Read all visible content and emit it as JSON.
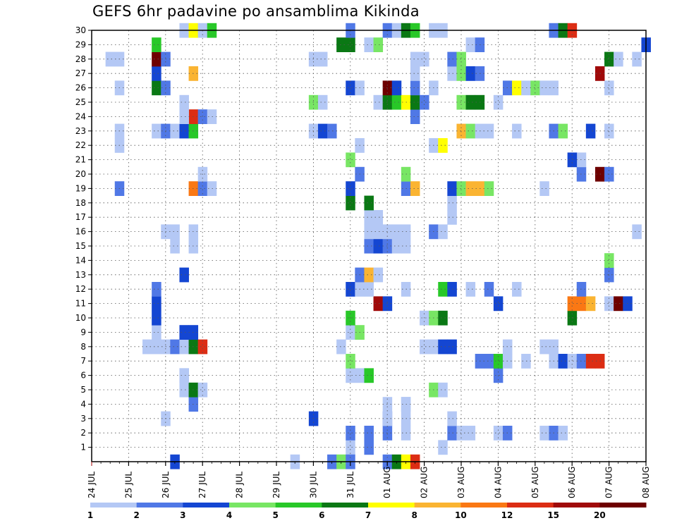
{
  "chart_data": {
    "type": "heatmap",
    "title": "GEFS 6hr padavine po ansamblima Kikinda",
    "y_ticks": [
      "1",
      "2",
      "3",
      "4",
      "5",
      "6",
      "7",
      "8",
      "9",
      "10",
      "11",
      "12",
      "13",
      "14",
      "15",
      "16",
      "17",
      "18",
      "19",
      "20",
      "21",
      "22",
      "23",
      "24",
      "25",
      "26",
      "27",
      "28",
      "29",
      "30"
    ],
    "x_ticks": [
      "24 JUL",
      "25 JUL",
      "26 JUL",
      "27 JUL",
      "28 JUL",
      "29 JUL",
      "30 JUL",
      "31 JUL",
      "01 AUG",
      "02 AUG",
      "03 AUG",
      "04 AUG",
      "05 AUG",
      "06 AUG",
      "07 AUG",
      "08 AUG"
    ],
    "steps_per_day": 4,
    "x_range_steps": [
      0,
      60
    ],
    "y_range_members": [
      0,
      30
    ],
    "grid": "dotted",
    "colorbar": {
      "labels": [
        "1",
        "2",
        "3",
        "4",
        "5",
        "6",
        "7",
        "8",
        "10",
        "12",
        "15",
        "20"
      ],
      "colors": [
        "#b4c8f5",
        "#5078e6",
        "#1446d2",
        "#78e664",
        "#28c828",
        "#0a7814",
        "#ffff00",
        "#fab432",
        "#fa7814",
        "#dc2d14",
        "#a00a0a",
        "#6e0000"
      ]
    },
    "cells": [
      [
        28,
        1,
        0
      ],
      [
        28,
        2,
        1
      ],
      [
        30,
        1,
        1
      ],
      [
        30,
        2,
        1
      ],
      [
        32,
        2,
        1
      ],
      [
        32,
        3,
        1
      ],
      [
        34,
        2,
        0
      ],
      [
        34,
        3,
        0
      ],
      [
        34,
        4,
        0
      ],
      [
        38,
        1,
        0
      ],
      [
        39,
        2,
        1
      ],
      [
        39,
        3,
        0
      ],
      [
        40,
        2,
        0
      ],
      [
        41,
        2,
        0
      ],
      [
        44,
        2,
        0
      ],
      [
        45,
        2,
        1
      ],
      [
        49,
        2,
        0
      ],
      [
        50,
        2,
        1
      ],
      [
        51,
        2,
        0
      ],
      [
        24,
        3,
        2
      ],
      [
        8,
        3,
        0
      ],
      [
        32,
        3,
        0
      ],
      [
        32,
        4,
        0
      ],
      [
        11,
        4,
        1
      ],
      [
        34,
        4,
        0
      ],
      [
        10,
        5,
        0
      ],
      [
        10,
        6,
        0
      ],
      [
        11,
        5,
        5
      ],
      [
        12,
        5,
        0
      ],
      [
        37,
        5,
        3
      ],
      [
        38,
        5,
        0
      ],
      [
        10,
        6,
        0
      ],
      [
        28,
        6,
        0
      ],
      [
        29,
        6,
        0
      ],
      [
        30,
        6,
        4
      ],
      [
        44,
        6,
        1
      ],
      [
        28,
        7,
        3
      ],
      [
        42,
        7,
        1
      ],
      [
        43,
        7,
        1
      ],
      [
        44,
        7,
        4
      ],
      [
        45,
        7,
        0
      ],
      [
        47,
        7,
        0
      ],
      [
        50,
        7,
        0
      ],
      [
        51,
        7,
        2
      ],
      [
        52,
        7,
        0
      ],
      [
        53,
        7,
        1
      ],
      [
        54,
        7,
        9
      ],
      [
        55,
        7,
        9
      ],
      [
        6,
        8,
        0
      ],
      [
        7,
        8,
        0
      ],
      [
        8,
        8,
        0
      ],
      [
        9,
        8,
        1
      ],
      [
        10,
        8,
        0
      ],
      [
        11,
        8,
        5
      ],
      [
        12,
        8,
        9
      ],
      [
        27,
        8,
        0
      ],
      [
        36,
        8,
        0
      ],
      [
        37,
        8,
        0
      ],
      [
        38,
        8,
        2
      ],
      [
        39,
        8,
        2
      ],
      [
        45,
        8,
        0
      ],
      [
        49,
        8,
        0
      ],
      [
        50,
        8,
        0
      ],
      [
        7,
        9,
        0
      ],
      [
        10,
        9,
        2
      ],
      [
        11,
        9,
        2
      ],
      [
        28,
        9,
        0
      ],
      [
        29,
        9,
        3
      ],
      [
        7,
        10,
        2
      ],
      [
        28,
        10,
        4
      ],
      [
        36,
        10,
        0
      ],
      [
        37,
        10,
        3
      ],
      [
        38,
        10,
        5
      ],
      [
        52,
        10,
        5
      ],
      [
        7,
        11,
        2
      ],
      [
        31,
        11,
        10
      ],
      [
        32,
        11,
        2
      ],
      [
        44,
        11,
        2
      ],
      [
        52,
        11,
        8
      ],
      [
        53,
        11,
        8
      ],
      [
        54,
        11,
        7
      ],
      [
        56,
        11,
        0
      ],
      [
        57,
        11,
        11
      ],
      [
        58,
        11,
        2
      ],
      [
        7,
        12,
        1
      ],
      [
        28,
        12,
        2
      ],
      [
        29,
        12,
        0
      ],
      [
        30,
        12,
        0
      ],
      [
        34,
        12,
        0
      ],
      [
        38,
        12,
        4
      ],
      [
        39,
        12,
        2
      ],
      [
        41,
        12,
        0
      ],
      [
        43,
        12,
        1
      ],
      [
        46,
        12,
        0
      ],
      [
        53,
        12,
        1
      ],
      [
        10,
        13,
        2
      ],
      [
        29,
        13,
        1
      ],
      [
        30,
        13,
        7
      ],
      [
        31,
        13,
        0
      ],
      [
        56,
        13,
        1
      ],
      [
        56,
        14,
        3
      ],
      [
        9,
        15,
        0
      ],
      [
        11,
        15,
        0
      ],
      [
        30,
        15,
        1
      ],
      [
        31,
        15,
        2
      ],
      [
        32,
        15,
        1
      ],
      [
        33,
        15,
        0
      ],
      [
        34,
        15,
        0
      ],
      [
        8,
        16,
        0
      ],
      [
        9,
        16,
        0
      ],
      [
        11,
        16,
        0
      ],
      [
        30,
        16,
        0
      ],
      [
        31,
        16,
        0
      ],
      [
        32,
        16,
        0
      ],
      [
        33,
        16,
        0
      ],
      [
        34,
        16,
        0
      ],
      [
        37,
        16,
        1
      ],
      [
        38,
        16,
        0
      ],
      [
        59,
        16,
        0
      ],
      [
        30,
        17,
        0
      ],
      [
        31,
        17,
        0
      ],
      [
        39,
        17,
        0
      ],
      [
        28,
        18,
        5
      ],
      [
        30,
        18,
        5
      ],
      [
        39,
        18,
        0
      ],
      [
        3,
        19,
        1
      ],
      [
        11,
        19,
        8
      ],
      [
        12,
        19,
        1
      ],
      [
        13,
        19,
        0
      ],
      [
        28,
        19,
        2
      ],
      [
        34,
        19,
        1
      ],
      [
        35,
        19,
        7
      ],
      [
        39,
        19,
        2
      ],
      [
        40,
        19,
        3
      ],
      [
        41,
        19,
        7
      ],
      [
        42,
        19,
        7
      ],
      [
        43,
        19,
        3
      ],
      [
        49,
        19,
        0
      ],
      [
        12,
        20,
        0
      ],
      [
        29,
        20,
        1
      ],
      [
        34,
        20,
        3
      ],
      [
        53,
        20,
        1
      ],
      [
        55,
        20,
        11
      ],
      [
        56,
        20,
        1
      ],
      [
        28,
        21,
        3
      ],
      [
        53,
        21,
        0
      ],
      [
        52,
        21,
        2
      ],
      [
        3,
        22,
        0
      ],
      [
        29,
        22,
        0
      ],
      [
        37,
        22,
        0
      ],
      [
        38,
        22,
        6
      ],
      [
        3,
        23,
        0
      ],
      [
        7,
        23,
        0
      ],
      [
        8,
        23,
        1
      ],
      [
        9,
        23,
        0
      ],
      [
        10,
        23,
        2
      ],
      [
        11,
        23,
        4
      ],
      [
        24,
        23,
        0
      ],
      [
        25,
        23,
        2
      ],
      [
        26,
        23,
        1
      ],
      [
        40,
        23,
        7
      ],
      [
        41,
        23,
        3
      ],
      [
        42,
        23,
        0
      ],
      [
        43,
        23,
        0
      ],
      [
        46,
        23,
        0
      ],
      [
        50,
        23,
        1
      ],
      [
        51,
        23,
        3
      ],
      [
        54,
        23,
        2
      ],
      [
        56,
        23,
        0
      ],
      [
        11,
        24,
        9
      ],
      [
        12,
        24,
        1
      ],
      [
        13,
        24,
        0
      ],
      [
        35,
        24,
        1
      ],
      [
        10,
        24,
        0
      ],
      [
        10,
        25,
        0
      ],
      [
        24,
        25,
        3
      ],
      [
        25,
        25,
        0
      ],
      [
        31,
        25,
        0
      ],
      [
        32,
        25,
        5
      ],
      [
        33,
        25,
        4
      ],
      [
        34,
        25,
        6
      ],
      [
        35,
        25,
        5
      ],
      [
        36,
        25,
        1
      ],
      [
        40,
        25,
        3
      ],
      [
        41,
        25,
        5
      ],
      [
        42,
        25,
        5
      ],
      [
        44,
        25,
        0
      ],
      [
        3,
        26,
        0
      ],
      [
        7,
        26,
        5
      ],
      [
        8,
        26,
        1
      ],
      [
        28,
        26,
        2
      ],
      [
        29,
        26,
        0
      ],
      [
        32,
        26,
        11
      ],
      [
        33,
        26,
        2
      ],
      [
        35,
        26,
        1
      ],
      [
        37,
        26,
        0
      ],
      [
        45,
        26,
        1
      ],
      [
        46,
        26,
        6
      ],
      [
        47,
        26,
        0
      ],
      [
        48,
        26,
        3
      ],
      [
        49,
        26,
        0
      ],
      [
        50,
        26,
        0
      ],
      [
        56,
        26,
        0
      ],
      [
        7,
        27,
        2
      ],
      [
        11,
        27,
        7
      ],
      [
        35,
        27,
        0
      ],
      [
        39,
        27,
        0
      ],
      [
        40,
        27,
        3
      ],
      [
        41,
        27,
        2
      ],
      [
        42,
        27,
        1
      ],
      [
        55,
        27,
        10
      ],
      [
        2,
        28,
        0
      ],
      [
        3,
        28,
        0
      ],
      [
        7,
        28,
        11
      ],
      [
        8,
        28,
        1
      ],
      [
        24,
        28,
        0
      ],
      [
        25,
        28,
        0
      ],
      [
        35,
        28,
        0
      ],
      [
        36,
        28,
        0
      ],
      [
        39,
        28,
        1
      ],
      [
        40,
        28,
        3
      ],
      [
        56,
        28,
        5
      ],
      [
        57,
        28,
        0
      ],
      [
        59,
        28,
        0
      ],
      [
        7,
        29,
        4
      ],
      [
        27,
        29,
        5
      ],
      [
        28,
        29,
        5
      ],
      [
        30,
        29,
        0
      ],
      [
        31,
        29,
        3
      ],
      [
        41,
        29,
        0
      ],
      [
        42,
        29,
        1
      ],
      [
        60,
        29,
        2
      ],
      [
        10,
        30,
        0
      ],
      [
        11,
        30,
        6
      ],
      [
        12,
        30,
        0
      ],
      [
        13,
        30,
        4
      ],
      [
        28,
        30,
        1
      ],
      [
        32,
        30,
        1
      ],
      [
        33,
        30,
        0
      ],
      [
        34,
        30,
        5
      ],
      [
        35,
        30,
        4
      ],
      [
        37,
        30,
        0
      ],
      [
        38,
        30,
        0
      ],
      [
        50,
        30,
        1
      ],
      [
        51,
        30,
        5
      ],
      [
        52,
        30,
        9
      ],
      [
        9,
        0,
        2
      ],
      [
        22,
        0,
        0
      ],
      [
        26,
        0,
        1
      ],
      [
        27,
        0,
        3
      ],
      [
        32,
        0,
        1
      ],
      [
        33,
        0,
        5
      ],
      [
        34,
        0,
        6
      ],
      [
        35,
        0,
        9
      ],
      [
        28,
        0,
        1
      ]
    ]
  }
}
